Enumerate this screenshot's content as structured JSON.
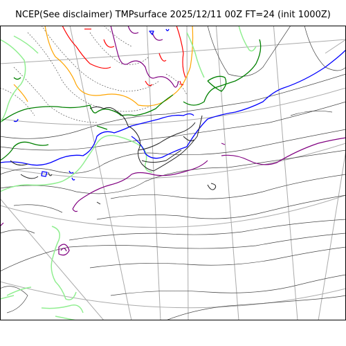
{
  "header": {
    "title": "NCEP(See disclaimer) TMPsurface 2025/12/11 00Z FT=24 (init 1000Z)"
  },
  "map": {
    "projection": "polar-stereographic",
    "graticule_color": "#aaaaaa",
    "coastline_color": "#222222",
    "contour_colors": {
      "red": "#ff0000",
      "orange": "#ffa500",
      "purple": "#800080",
      "green": "#008000",
      "light_green": "#90ee90",
      "blue": "#0000ff",
      "dark": "#444444"
    }
  }
}
